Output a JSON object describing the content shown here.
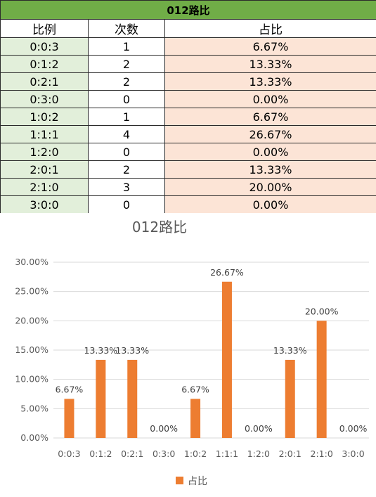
{
  "table": {
    "title": "012路比",
    "headers": [
      "比例",
      "次数",
      "占比"
    ],
    "rows": [
      {
        "ratio": "0:0:3",
        "count": "1",
        "pct": "6.67%"
      },
      {
        "ratio": "0:1:2",
        "count": "2",
        "pct": "13.33%"
      },
      {
        "ratio": "0:2:1",
        "count": "2",
        "pct": "13.33%"
      },
      {
        "ratio": "0:3:0",
        "count": "0",
        "pct": "0.00%"
      },
      {
        "ratio": "1:0:2",
        "count": "1",
        "pct": "6.67%"
      },
      {
        "ratio": "1:1:1",
        "count": "4",
        "pct": "26.67%"
      },
      {
        "ratio": "1:2:0",
        "count": "0",
        "pct": "0.00%"
      },
      {
        "ratio": "2:0:1",
        "count": "2",
        "pct": "13.33%"
      },
      {
        "ratio": "2:1:0",
        "count": "3",
        "pct": "20.00%"
      },
      {
        "ratio": "3:0:0",
        "count": "0",
        "pct": "0.00%"
      }
    ]
  },
  "chart_data": {
    "type": "bar",
    "title": "012路比",
    "categories": [
      "0:0:3",
      "0:1:2",
      "0:2:1",
      "0:3:0",
      "1:0:2",
      "1:1:1",
      "1:2:0",
      "2:0:1",
      "2:1:0",
      "3:0:0"
    ],
    "series": [
      {
        "name": "占比",
        "values": [
          6.67,
          13.33,
          13.33,
          0.0,
          6.67,
          26.67,
          0.0,
          13.33,
          20.0,
          0.0
        ],
        "labels": [
          "6.67%",
          "13.33%",
          "13.33%",
          "0.00%",
          "6.67%",
          "26.67%",
          "0.00%",
          "13.33%",
          "20.00%",
          "0.00%"
        ]
      }
    ],
    "ylim": [
      0,
      30
    ],
    "yticks": [
      "0.00%",
      "5.00%",
      "10.00%",
      "15.00%",
      "20.00%",
      "25.00%",
      "30.00%"
    ],
    "grid": true,
    "legend": "bottom",
    "colors": {
      "bar": "#ed7d31",
      "grid": "#d9d9d9",
      "header": "#70ad47",
      "ratio_col": "#e2efda",
      "pct_col": "#fce4d6"
    }
  }
}
